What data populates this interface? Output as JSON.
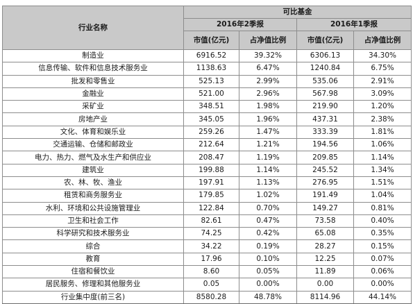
{
  "header": {
    "industry_col": "行业名称",
    "group": "可比基金",
    "period_q2": "2016年2季报",
    "period_q1": "2016年1季报",
    "market_value": "市值(亿元)",
    "nav_ratio": "占净值比例"
  },
  "rows": [
    {
      "name": "制造业",
      "q2_mv": "6916.52",
      "q2_pct": "39.32%",
      "q1_mv": "6306.13",
      "q1_pct": "34.30%"
    },
    {
      "name": "信息传输、软件和信息技术服务业",
      "q2_mv": "1138.63",
      "q2_pct": "6.47%",
      "q1_mv": "1240.84",
      "q1_pct": "6.75%"
    },
    {
      "name": "批发和零售业",
      "q2_mv": "525.13",
      "q2_pct": "2.99%",
      "q1_mv": "535.06",
      "q1_pct": "2.91%"
    },
    {
      "name": "金融业",
      "q2_mv": "521.00",
      "q2_pct": "2.96%",
      "q1_mv": "567.98",
      "q1_pct": "3.09%"
    },
    {
      "name": "采矿业",
      "q2_mv": "348.51",
      "q2_pct": "1.98%",
      "q1_mv": "219.90",
      "q1_pct": "1.20%"
    },
    {
      "name": "房地产业",
      "q2_mv": "345.05",
      "q2_pct": "1.96%",
      "q1_mv": "437.31",
      "q1_pct": "2.38%"
    },
    {
      "name": "文化、体育和娱乐业",
      "q2_mv": "259.26",
      "q2_pct": "1.47%",
      "q1_mv": "333.39",
      "q1_pct": "1.81%"
    },
    {
      "name": "交通运输、仓储和邮政业",
      "q2_mv": "212.64",
      "q2_pct": "1.21%",
      "q1_mv": "194.56",
      "q1_pct": "1.06%"
    },
    {
      "name": "电力、热力、燃气及水生产和供应业",
      "q2_mv": "208.47",
      "q2_pct": "1.19%",
      "q1_mv": "209.85",
      "q1_pct": "1.14%"
    },
    {
      "name": "建筑业",
      "q2_mv": "199.88",
      "q2_pct": "1.14%",
      "q1_mv": "245.52",
      "q1_pct": "1.34%"
    },
    {
      "name": "农、林、牧、渔业",
      "q2_mv": "197.91",
      "q2_pct": "1.13%",
      "q1_mv": "276.95",
      "q1_pct": "1.51%"
    },
    {
      "name": "租赁和商务服务业",
      "q2_mv": "179.85",
      "q2_pct": "1.02%",
      "q1_mv": "191.49",
      "q1_pct": "1.04%"
    },
    {
      "name": "水利、环境和公共设施管理业",
      "q2_mv": "122.84",
      "q2_pct": "0.70%",
      "q1_mv": "149.27",
      "q1_pct": "0.81%"
    },
    {
      "name": "卫生和社会工作",
      "q2_mv": "82.61",
      "q2_pct": "0.47%",
      "q1_mv": "73.58",
      "q1_pct": "0.40%"
    },
    {
      "name": "科学研究和技术服务业",
      "q2_mv": "74.25",
      "q2_pct": "0.42%",
      "q1_mv": "65.08",
      "q1_pct": "0.35%"
    },
    {
      "name": "综合",
      "q2_mv": "34.22",
      "q2_pct": "0.19%",
      "q1_mv": "28.27",
      "q1_pct": "0.15%"
    },
    {
      "name": "教育",
      "q2_mv": "17.96",
      "q2_pct": "0.10%",
      "q1_mv": "12.25",
      "q1_pct": "0.07%"
    },
    {
      "name": "住宿和餐饮业",
      "q2_mv": "8.60",
      "q2_pct": "0.05%",
      "q1_mv": "11.89",
      "q1_pct": "0.06%"
    },
    {
      "name": "居民服务、修理和其他服务业",
      "q2_mv": "0.05",
      "q2_pct": "0.00%",
      "q1_mv": "0.00",
      "q1_pct": "0.00%"
    },
    {
      "name": "行业集中度(前三名)",
      "q2_mv": "8580.28",
      "q2_pct": "48.78%",
      "q1_mv": "8114.96",
      "q1_pct": "44.14%"
    }
  ]
}
